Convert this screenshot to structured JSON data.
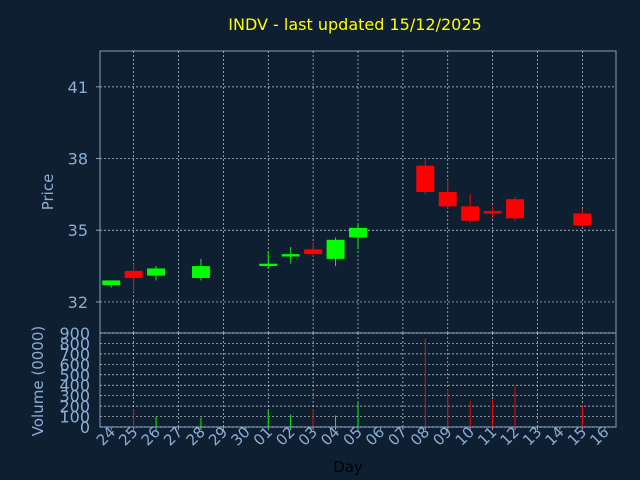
{
  "chart_data": [
    {
      "type": "candlestick",
      "title": "INDV - last updated 15/12/2025",
      "ylabel": "Price",
      "ylim": [
        30.7,
        42.5
      ],
      "yticks": [
        32,
        35,
        38,
        41
      ],
      "grid": true,
      "colors": {
        "up": "#00ff00",
        "down": "#ff0000",
        "title": "#ffff00",
        "axis_text": "#8aaed4",
        "background": "#0f1f32",
        "frame": "#7f9fc0"
      },
      "x": [
        "24",
        "25",
        "26",
        "27",
        "28",
        "29",
        "30",
        "01",
        "02",
        "03",
        "04",
        "05",
        "06",
        "07",
        "08",
        "09",
        "10",
        "11",
        "12",
        "13",
        "14",
        "15",
        "16"
      ],
      "candles": [
        {
          "day": "24",
          "open": 32.7,
          "high": 32.9,
          "low": 32.6,
          "close": 32.9
        },
        {
          "day": "25",
          "open": 33.3,
          "high": 33.6,
          "low": 32.4,
          "close": 33.0
        },
        {
          "day": "26",
          "open": 33.1,
          "high": 33.5,
          "low": 32.9,
          "close": 33.4
        },
        {
          "day": "28",
          "open": 33.0,
          "high": 33.8,
          "low": 32.9,
          "close": 33.5
        },
        {
          "day": "01",
          "open": 33.5,
          "high": 34.1,
          "low": 33.4,
          "close": 33.6
        },
        {
          "day": "02",
          "open": 33.9,
          "high": 34.3,
          "low": 33.6,
          "close": 34.0
        },
        {
          "day": "03",
          "open": 34.2,
          "high": 34.5,
          "low": 33.9,
          "close": 34.0
        },
        {
          "day": "04",
          "open": 33.8,
          "high": 34.7,
          "low": 33.5,
          "close": 34.6
        },
        {
          "day": "05",
          "open": 34.7,
          "high": 35.3,
          "low": 34.2,
          "close": 35.1
        },
        {
          "day": "08",
          "open": 37.7,
          "high": 38.0,
          "low": 36.5,
          "close": 36.6
        },
        {
          "day": "09",
          "open": 36.6,
          "high": 37.1,
          "low": 35.9,
          "close": 36.0
        },
        {
          "day": "10",
          "open": 36.0,
          "high": 36.5,
          "low": 35.3,
          "close": 35.4
        },
        {
          "day": "11",
          "open": 35.8,
          "high": 36.0,
          "low": 35.5,
          "close": 35.7
        },
        {
          "day": "12",
          "open": 36.3,
          "high": 36.4,
          "low": 35.4,
          "close": 35.5
        },
        {
          "day": "15",
          "open": 35.7,
          "high": 35.9,
          "low": 35.1,
          "close": 35.2
        }
      ]
    },
    {
      "type": "bar",
      "ylabel": "Volume (0000)",
      "xlabel": "Day",
      "ylim": [
        0,
        900
      ],
      "yticks": [
        0,
        100,
        200,
        300,
        400,
        500,
        600,
        700,
        800,
        900
      ],
      "grid": true,
      "categories": [
        "24",
        "25",
        "26",
        "27",
        "28",
        "29",
        "30",
        "01",
        "02",
        "03",
        "04",
        "05",
        "06",
        "07",
        "08",
        "09",
        "10",
        "11",
        "12",
        "13",
        "14",
        "15",
        "16"
      ],
      "values": [
        0,
        170,
        100,
        0,
        90,
        0,
        0,
        160,
        120,
        170,
        110,
        230,
        0,
        0,
        850,
        360,
        250,
        260,
        390,
        0,
        0,
        210,
        0
      ],
      "bar_colors": [
        "#00ff00",
        "#ff0000",
        "#00ff00",
        "#00ff00",
        "#00ff00",
        "#00ff00",
        "#00ff00",
        "#00ff00",
        "#00ff00",
        "#ff0000",
        "#00ff00",
        "#00ff00",
        "#00ff00",
        "#00ff00",
        "#ff0000",
        "#ff0000",
        "#ff0000",
        "#ff0000",
        "#ff0000",
        "#ff0000",
        "#ff0000",
        "#ff0000",
        "#ff0000"
      ]
    }
  ]
}
